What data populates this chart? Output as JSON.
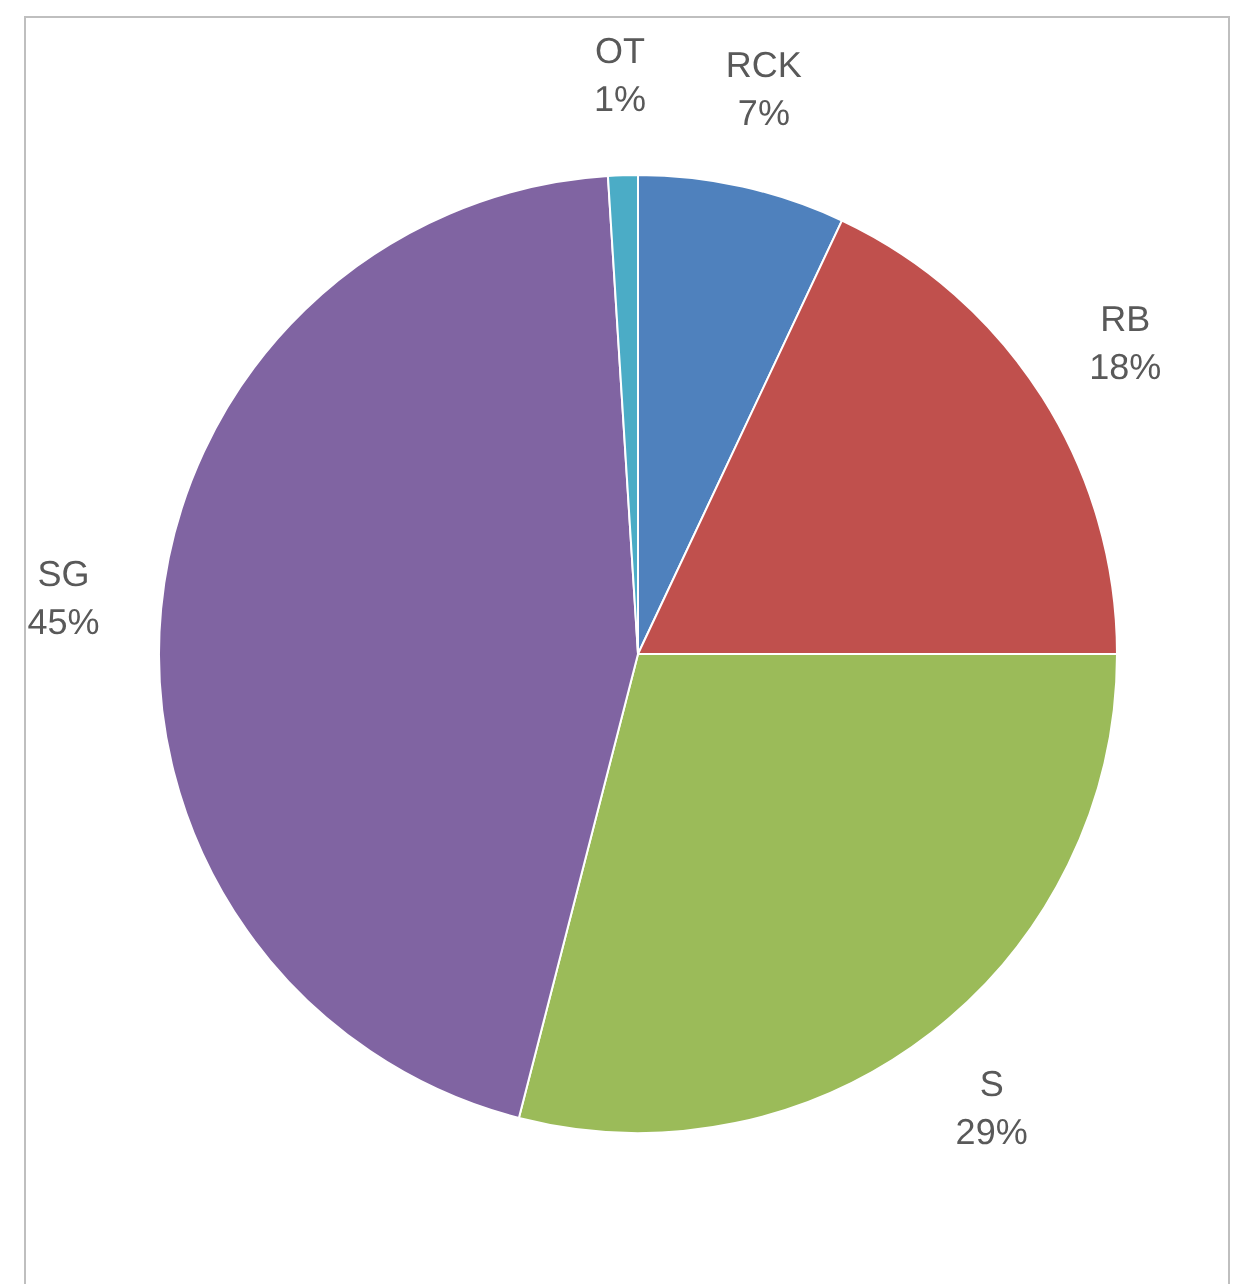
{
  "chart_data": {
    "type": "pie",
    "categories": [
      "RCK",
      "RB",
      "S",
      "SG",
      "OT"
    ],
    "values": [
      7,
      18,
      29,
      45,
      1
    ],
    "colors": [
      "#4f81bd",
      "#c0504d",
      "#9bbb59",
      "#8064a2",
      "#4bacc6"
    ],
    "value_labels": [
      "7%",
      "18%",
      "29%",
      "45%",
      "1%"
    ],
    "legend": false
  }
}
